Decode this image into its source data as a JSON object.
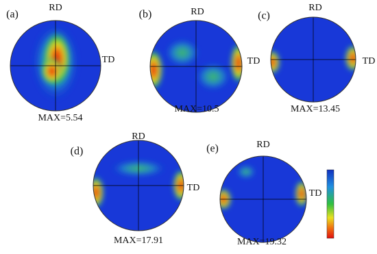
{
  "panels": [
    {
      "label": "(a)",
      "rd": "RD",
      "td": "TD",
      "max": "MAX=5.54"
    },
    {
      "label": "(b)",
      "rd": "RD",
      "td": "TD",
      "max": "MAX=10.5"
    },
    {
      "label": "(c)",
      "rd": "RD",
      "td": "TD",
      "max": "MAX=13.45"
    },
    {
      "label": "(d)",
      "rd": "RD",
      "td": "TD",
      "max": "MAX=17.91"
    },
    {
      "label": "(e)",
      "rd": "RD",
      "td": "TD",
      "max": "MAX=19.32"
    }
  ]
}
